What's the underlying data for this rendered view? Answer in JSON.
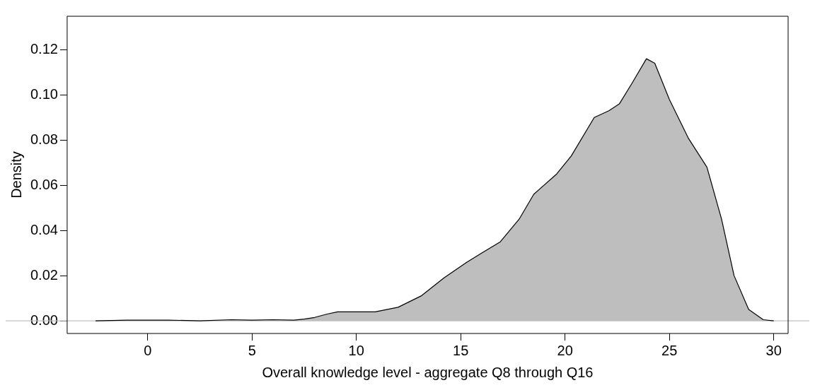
{
  "chart_data": {
    "type": "area",
    "xlabel": "Overall knowledge level - aggregate Q8 through Q16",
    "ylabel": "Density",
    "series": [
      {
        "color": "#bebebe",
        "x": [
          -2.5,
          -1,
          1,
          2.5,
          4,
          5,
          6,
          7,
          7.5,
          8,
          8.6,
          9.1,
          10,
          10.9,
          12,
          13.1,
          14.2,
          15.3,
          16,
          16.9,
          17.8,
          18.5,
          19.6,
          20.3,
          21.4,
          22.1,
          22.6,
          23.2,
          23.9,
          24.3,
          25,
          25.9,
          26.8,
          27.5,
          28.1,
          28.8,
          29.5,
          30
        ],
        "values": [
          0,
          0.0003,
          0.0003,
          0,
          0.0005,
          0.0003,
          0.0005,
          0.0003,
          0.0008,
          0.0015,
          0.003,
          0.004,
          0.004,
          0.004,
          0.006,
          0.011,
          0.019,
          0.026,
          0.03,
          0.035,
          0.045,
          0.056,
          0.065,
          0.073,
          0.09,
          0.093,
          0.096,
          0.105,
          0.116,
          0.114,
          0.098,
          0.081,
          0.068,
          0.045,
          0.02,
          0.005,
          0.0005,
          0
        ]
      }
    ],
    "xlim": [
      -3.86,
      30.69
    ],
    "xticks": [
      0,
      5,
      10,
      15,
      20,
      25,
      30
    ],
    "ylim": [
      -0.0056,
      0.1348
    ],
    "yticks": [
      {
        "value": 0,
        "label": "0.00"
      },
      {
        "value": 0.02,
        "label": "0.02"
      },
      {
        "value": 0.04,
        "label": "0.04"
      },
      {
        "value": 0.06,
        "label": "0.06"
      },
      {
        "value": 0.08,
        "label": "0.08"
      },
      {
        "value": 0.1,
        "label": "0.10"
      },
      {
        "value": 0.12,
        "label": "0.12"
      }
    ],
    "ref_lines": [
      {
        "axis": "y",
        "value": 0,
        "color": "#bfbfbf"
      }
    ],
    "grid": false,
    "legend": false
  }
}
